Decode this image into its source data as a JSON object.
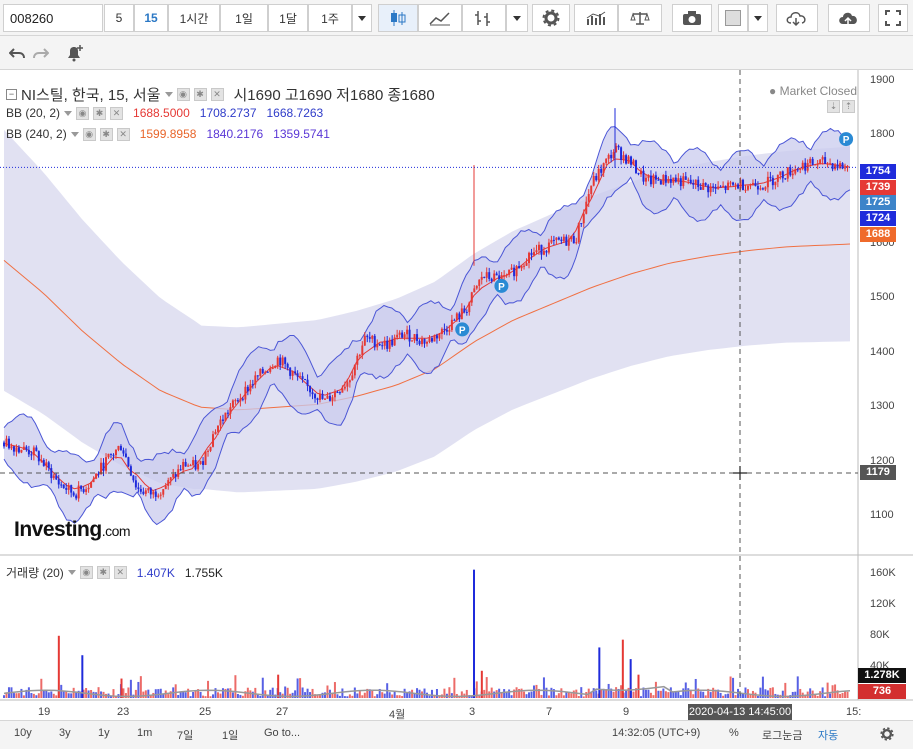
{
  "toolbar": {
    "symbol": "008260",
    "intervals": [
      "5",
      "15",
      "1시간",
      "1일",
      "1달",
      "1주"
    ],
    "active_interval": "15"
  },
  "legend": {
    "title": "NI스틸, 한국, 15, 서울",
    "ohlc": "시1690  고1690  저1680  종1680",
    "bb20_name": "BB (20, 2)",
    "bb20_v1": "1688.5000",
    "bb20_v2": "1708.2737",
    "bb20_v3": "1668.7263",
    "bb240_name": "BB (240, 2)",
    "bb240_v1": "1599.8958",
    "bb240_v2": "1840.2176",
    "bb240_v3": "1359.5741",
    "market_status": "● Market Closed",
    "volume_name": "거래량 (20)",
    "volume_v1": "1.407K",
    "volume_v2": "1.755K"
  },
  "logo": {
    "text": "Investing",
    "suffix": ".com"
  },
  "price_labels": [
    {
      "text": "1754",
      "value": 1754,
      "color": "#1f2bdb"
    },
    {
      "text": "1739",
      "value": 1739,
      "color": "#e53935"
    },
    {
      "text": "1725",
      "value": 1725,
      "color": "#3d84c9"
    },
    {
      "text": "1724",
      "value": 1724,
      "color": "#1f2bdb"
    },
    {
      "text": "1688",
      "value": 1688,
      "color": "#ef6a2b"
    },
    {
      "text": "1179",
      "value": 1179,
      "color": "#555555"
    }
  ],
  "volume_labels": [
    {
      "text": "1.278K",
      "color": "#111111"
    },
    {
      "text": "736",
      "color": "#d32f2f"
    }
  ],
  "crosshair_date": "2020-04-13 14:45:00",
  "bottom": {
    "ranges": [
      "10y",
      "3y",
      "1y",
      "1m",
      "7일",
      "1일"
    ],
    "goto": "Go to...",
    "clock": "14:32:05 (UTC+9)",
    "pct": "%",
    "log": "로그눈금",
    "auto": "자동"
  },
  "colors": {
    "up": "#e53935",
    "down": "#1f2bdb",
    "bb20_line": "#4b56d6",
    "bb20_fill": "#c9cbee",
    "bb240_fill": "#dcdcf0",
    "bb240_mid": "#f07043"
  },
  "chart_data": {
    "type": "candlestick",
    "title": "NI스틸, 한국, 15, 서울",
    "y_axis": {
      "ticks": [
        1100,
        1200,
        1300,
        1400,
        1500,
        1600,
        1700,
        1800,
        1900
      ],
      "range": [
        1030,
        1920
      ]
    },
    "x_axis": {
      "ticks": [
        "19",
        "23",
        "25",
        "27",
        "4월",
        "3",
        "7",
        "9",
        "15:"
      ]
    },
    "volume_axis": {
      "ticks": [
        "40K",
        "80K",
        "120K",
        "160K"
      ],
      "range": [
        0,
        180
      ]
    },
    "last_close": 1739,
    "bb20": {
      "middle": 1688.5,
      "upper": 1708.2737,
      "lower": 1668.7263
    },
    "bb240": {
      "middle": 1599.8958,
      "upper": 1840.2176,
      "lower": 1359.5741
    },
    "close_path": [
      {
        "x": 0,
        "y": 1235
      },
      {
        "x": 4,
        "y": 1215
      },
      {
        "x": 7,
        "y": 1160
      },
      {
        "x": 9,
        "y": 1140
      },
      {
        "x": 11,
        "y": 1160
      },
      {
        "x": 13,
        "y": 1200
      },
      {
        "x": 15,
        "y": 1230
      },
      {
        "x": 17,
        "y": 1150
      },
      {
        "x": 19,
        "y": 1140
      },
      {
        "x": 21,
        "y": 1160
      },
      {
        "x": 23,
        "y": 1195
      },
      {
        "x": 25,
        "y": 1190
      },
      {
        "x": 27,
        "y": 1260
      },
      {
        "x": 29,
        "y": 1300
      },
      {
        "x": 32,
        "y": 1350
      },
      {
        "x": 35,
        "y": 1390
      },
      {
        "x": 38,
        "y": 1345
      },
      {
        "x": 41,
        "y": 1310
      },
      {
        "x": 44,
        "y": 1350
      },
      {
        "x": 46,
        "y": 1425
      },
      {
        "x": 49,
        "y": 1415
      },
      {
        "x": 51,
        "y": 1435
      },
      {
        "x": 54,
        "y": 1420
      },
      {
        "x": 56,
        "y": 1440
      },
      {
        "x": 59,
        "y": 1480
      },
      {
        "x": 61,
        "y": 1540
      },
      {
        "x": 64,
        "y": 1535
      },
      {
        "x": 67,
        "y": 1580
      },
      {
        "x": 70,
        "y": 1600
      },
      {
        "x": 73,
        "y": 1610
      },
      {
        "x": 75,
        "y": 1710
      },
      {
        "x": 78,
        "y": 1775
      },
      {
        "x": 80,
        "y": 1750
      },
      {
        "x": 82,
        "y": 1715
      },
      {
        "x": 85,
        "y": 1720
      },
      {
        "x": 88,
        "y": 1710
      },
      {
        "x": 91,
        "y": 1700
      },
      {
        "x": 94,
        "y": 1710
      },
      {
        "x": 97,
        "y": 1710
      },
      {
        "x": 99,
        "y": 1725
      },
      {
        "x": 102,
        "y": 1745
      },
      {
        "x": 105,
        "y": 1750
      },
      {
        "x": 108,
        "y": 1739
      }
    ],
    "bb240_path": [
      {
        "x": 0,
        "y": 1570
      },
      {
        "x": 5,
        "y": 1510
      },
      {
        "x": 10,
        "y": 1440
      },
      {
        "x": 15,
        "y": 1380
      },
      {
        "x": 20,
        "y": 1330
      },
      {
        "x": 25,
        "y": 1300
      },
      {
        "x": 30,
        "y": 1295
      },
      {
        "x": 35,
        "y": 1300
      },
      {
        "x": 40,
        "y": 1305
      },
      {
        "x": 45,
        "y": 1320
      },
      {
        "x": 50,
        "y": 1340
      },
      {
        "x": 55,
        "y": 1370
      },
      {
        "x": 60,
        "y": 1420
      },
      {
        "x": 65,
        "y": 1460
      },
      {
        "x": 70,
        "y": 1490
      },
      {
        "x": 75,
        "y": 1520
      },
      {
        "x": 80,
        "y": 1545
      },
      {
        "x": 85,
        "y": 1565
      },
      {
        "x": 90,
        "y": 1578
      },
      {
        "x": 95,
        "y": 1588
      },
      {
        "x": 100,
        "y": 1595
      },
      {
        "x": 108,
        "y": 1600
      }
    ],
    "volume_spikes": [
      {
        "x": 7,
        "v": 80
      },
      {
        "x": 10,
        "v": 55
      },
      {
        "x": 15,
        "v": 25
      },
      {
        "x": 35,
        "v": 30
      },
      {
        "x": 60,
        "v": 165
      },
      {
        "x": 61,
        "v": 35
      },
      {
        "x": 76,
        "v": 65
      },
      {
        "x": 79,
        "v": 75
      },
      {
        "x": 80,
        "v": 50
      },
      {
        "x": 81,
        "v": 30
      }
    ]
  }
}
